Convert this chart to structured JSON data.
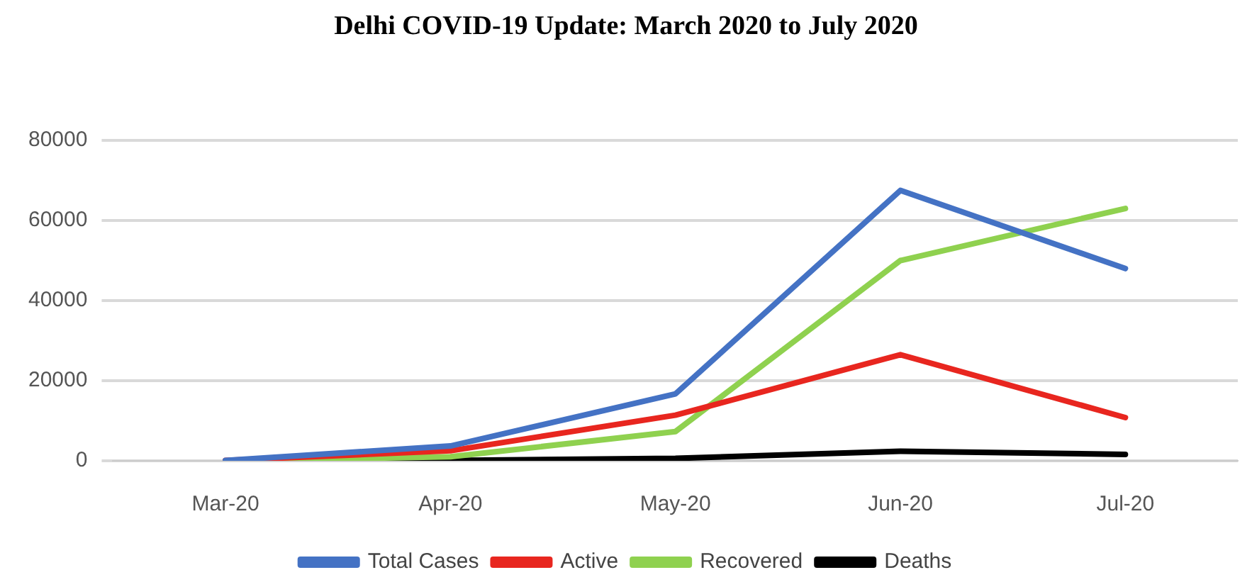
{
  "chart_data": {
    "type": "line",
    "title": "Delhi COVID-19 Update: March 2020 to July 2020",
    "categories": [
      "Mar-20",
      "Apr-20",
      "May-20",
      "Jun-20",
      "Jul-20"
    ],
    "series": [
      {
        "name": "Total Cases",
        "color": "#4472c4",
        "values": [
          100,
          3700,
          16700,
          67500,
          48000
        ]
      },
      {
        "name": "Active",
        "color": "#e8261f",
        "values": [
          100,
          2500,
          11400,
          26500,
          10800
        ]
      },
      {
        "name": "Recovered",
        "color": "#8fd14f",
        "values": [
          0,
          1000,
          7300,
          50000,
          63000
        ]
      },
      {
        "name": "Deaths",
        "color": "#000000",
        "values": [
          0,
          100,
          600,
          2400,
          1600
        ]
      }
    ],
    "ylim": [
      0,
      80000
    ],
    "yticks": [
      0,
      20000,
      40000,
      60000,
      80000
    ],
    "grid": "y",
    "legend": "bottom",
    "marker": "none",
    "line_style": "solid"
  }
}
